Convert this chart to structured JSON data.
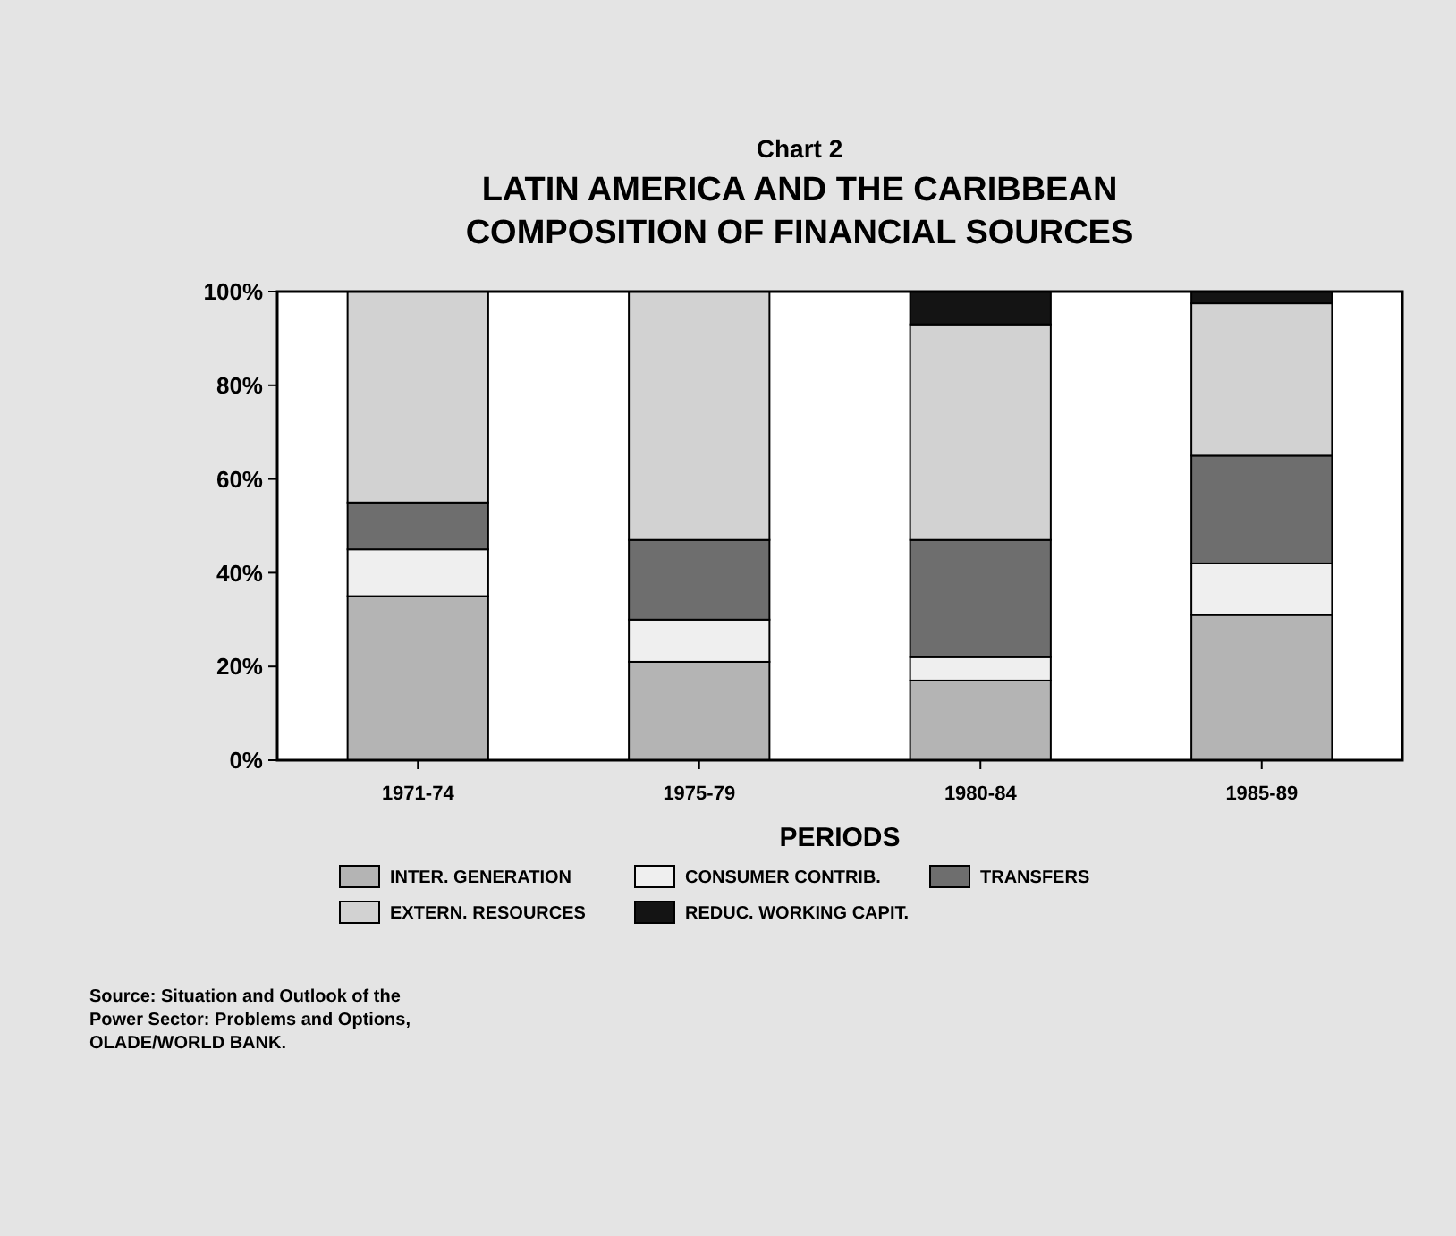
{
  "chart_data": {
    "type": "bar",
    "subtitle": "Chart 2",
    "title": "LATIN AMERICA AND THE CARIBBEAN\nCOMPOSITION OF FINANCIAL SOURCES",
    "xlabel": "PERIODS",
    "categories": [
      "1971-74",
      "1975-79",
      "1980-84",
      "1985-89"
    ],
    "stacked": true,
    "series": [
      {
        "name": "INTER. GENERATION",
        "color": "#b4b4b4",
        "values": [
          35,
          21,
          17,
          31
        ]
      },
      {
        "name": "CONSUMER CONTRIB.",
        "color": "#efefef",
        "values": [
          10,
          9,
          5,
          11
        ]
      },
      {
        "name": "TRANSFERS",
        "color": "#6e6e6e",
        "values": [
          10,
          17,
          25,
          23
        ]
      },
      {
        "name": "EXTERN. RESOURCES",
        "color": "#d2d2d2",
        "values": [
          45,
          53,
          46,
          32.5
        ]
      },
      {
        "name": "REDUC. WORKING CAPIT.",
        "color": "#141414",
        "values": [
          0,
          0,
          7,
          2.5
        ]
      }
    ],
    "ylim": [
      0,
      100
    ],
    "yticks": [
      {
        "value": 0,
        "label": "0%"
      },
      {
        "value": 20,
        "label": "20%"
      },
      {
        "value": 40,
        "label": "40%"
      },
      {
        "value": 60,
        "label": "60%"
      },
      {
        "value": 80,
        "label": "80%"
      },
      {
        "value": 100,
        "label": "100%"
      }
    ],
    "legend": "bottom",
    "annotations": [
      "Source: Situation and Outlook of the\nPower Sector: Problems and Options,\nOLADE/WORLD BANK."
    ]
  }
}
